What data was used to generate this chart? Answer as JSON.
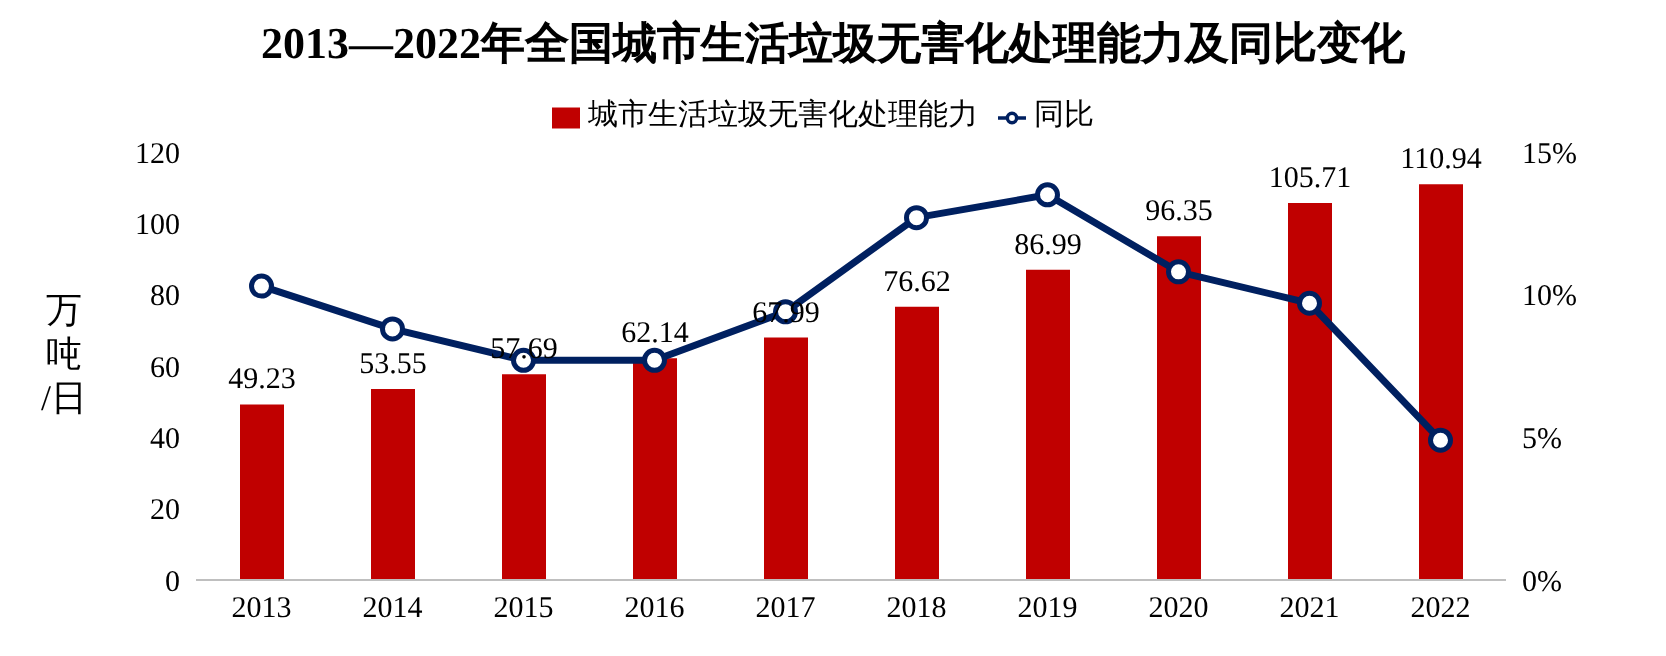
{
  "chart_data": {
    "type": "bar",
    "title": "2013—2022年全国城市生活垃圾无害化处理能力及同比变化",
    "ylabel": "万吨/日",
    "categories": [
      "2013",
      "2014",
      "2015",
      "2016",
      "2017",
      "2018",
      "2019",
      "2020",
      "2021",
      "2022"
    ],
    "series": [
      {
        "name": "城市生活垃圾无害化处理能力",
        "color": "#c00000",
        "values": [
          49.23,
          53.55,
          57.69,
          62.14,
          67.99,
          76.62,
          86.99,
          96.35,
          105.71,
          110.94
        ],
        "data_labels": true
      },
      {
        "name": "同比",
        "type": "line",
        "axis": "y2",
        "color": "#002060",
        "marker": "circle",
        "values": [
          10.3,
          8.8,
          7.7,
          7.7,
          9.4,
          12.7,
          13.5,
          10.8,
          9.7,
          4.9
        ]
      }
    ],
    "ylim": [
      0,
      120
    ],
    "yticks": [
      0,
      20,
      40,
      60,
      80,
      100,
      120
    ],
    "y2lim": [
      0,
      15
    ],
    "y2ticks": [
      {
        "value": 0,
        "label": "0%"
      },
      {
        "value": 5,
        "label": "5%"
      },
      {
        "value": 10,
        "label": "10%"
      },
      {
        "value": 15,
        "label": "15%"
      }
    ],
    "legend": "top"
  }
}
